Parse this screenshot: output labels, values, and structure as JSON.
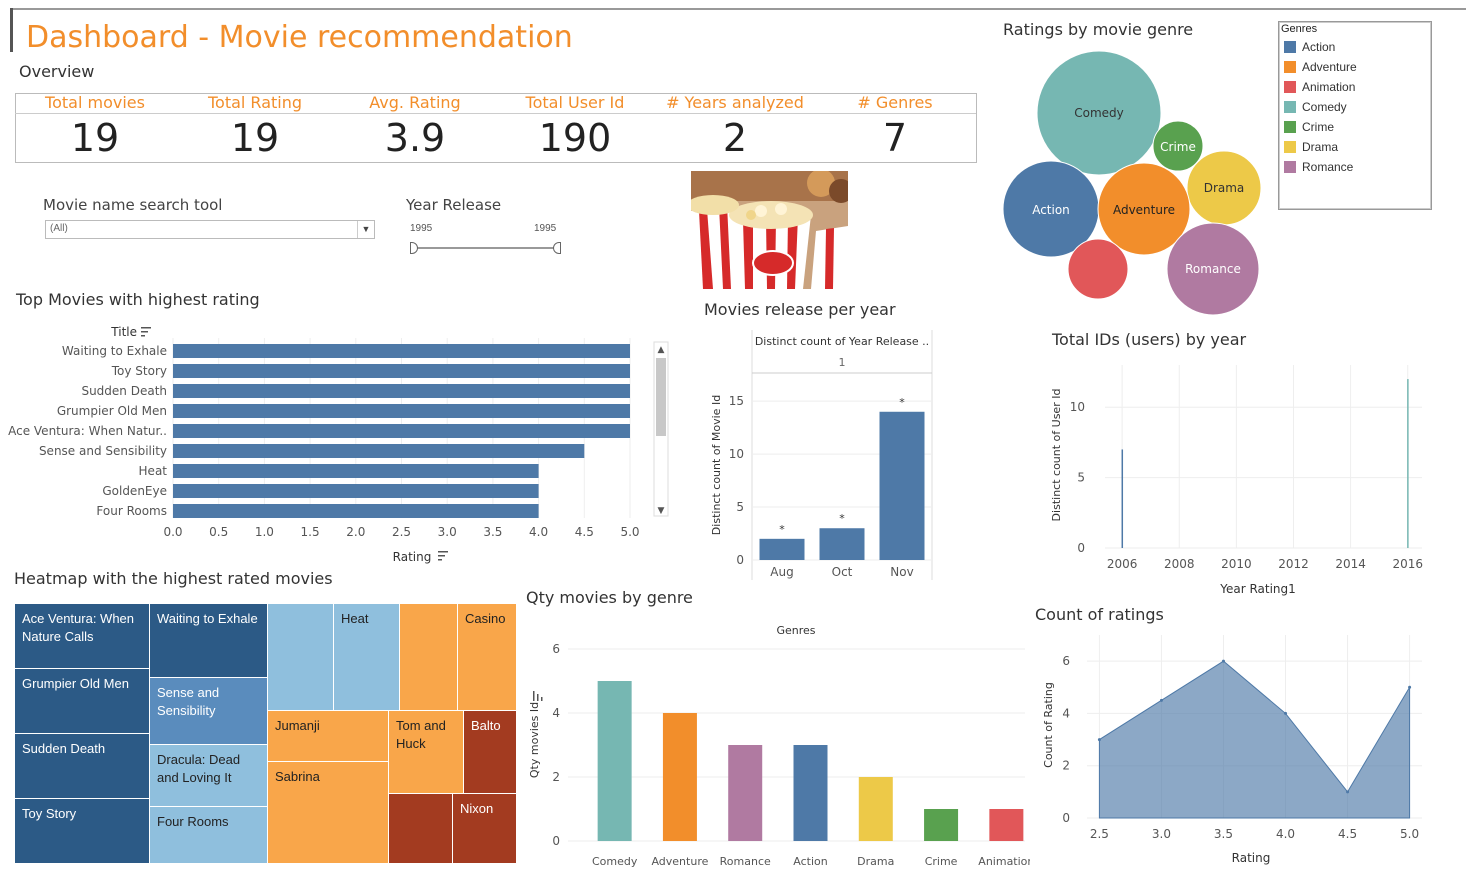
{
  "title": "Dashboard - Movie recommendation",
  "overview_label": "Overview",
  "kpis": [
    {
      "label": "Total movies",
      "value": "19"
    },
    {
      "label": "Total Rating",
      "value": "19"
    },
    {
      "label": "Avg. Rating",
      "value": "3.9"
    },
    {
      "label": "Total User Id",
      "value": "190"
    },
    {
      "label": "# Years analyzed",
      "value": "2"
    },
    {
      "label": "# Genres",
      "value": "7"
    }
  ],
  "filters": {
    "movie_search_label": "Movie name search tool",
    "movie_search_value": "(All)",
    "year_label": "Year Release",
    "year_min": "1995",
    "year_max": "1995"
  },
  "colors": {
    "accent": "#f28e2b",
    "action": "#4e79a7",
    "adventure": "#f28e2b",
    "animation": "#e15759",
    "comedy": "#76b7b2",
    "crime": "#59a14f",
    "drama": "#edc948",
    "romance": "#b07aa1"
  },
  "bubble_chart": {
    "title": "Ratings by movie genre",
    "legend_title": "Genres",
    "legend": [
      "Action",
      "Adventure",
      "Animation",
      "Comedy",
      "Crime",
      "Drama",
      "Romance"
    ],
    "bubbles": [
      {
        "name": "Comedy",
        "label": "Comedy",
        "color": "#76b7b2"
      },
      {
        "name": "Crime",
        "label": "Crime",
        "color": "#59a14f"
      },
      {
        "name": "Drama",
        "label": "Drama",
        "color": "#edc948"
      },
      {
        "name": "Action",
        "label": "Action",
        "color": "#4e79a7"
      },
      {
        "name": "Adventure",
        "label": "Adventure",
        "color": "#f28e2b"
      },
      {
        "name": "Animation",
        "label": "",
        "color": "#e15759"
      },
      {
        "name": "Romance",
        "label": "Romance",
        "color": "#b07aa1"
      }
    ]
  },
  "chart_data": [
    {
      "type": "bar",
      "orientation": "horizontal",
      "title": "Top Movies with highest rating",
      "category_header": "Title",
      "xlabel": "Rating",
      "categories": [
        "Waiting to Exhale",
        "Toy Story",
        "Sudden Death",
        "Grumpier Old Men",
        "Ace Ventura: When Natur..",
        "Sense and Sensibility",
        "Heat",
        "GoldenEye",
        "Four Rooms"
      ],
      "values": [
        5.0,
        5.0,
        5.0,
        5.0,
        5.0,
        4.5,
        4.0,
        4.0,
        4.0
      ],
      "xticks": [
        "0.0",
        "0.5",
        "1.0",
        "1.5",
        "2.0",
        "2.5",
        "3.0",
        "3.5",
        "4.0",
        "4.5",
        "5.0"
      ],
      "xlim": [
        0,
        5
      ]
    },
    {
      "type": "bar",
      "title": "Movies release per year",
      "header": "Distinct count of Year Release ..",
      "header_value": "1",
      "ylabel": "Distinct count of Movie Id",
      "categories": [
        "Aug",
        "Oct",
        "Nov"
      ],
      "values": [
        2,
        3,
        14
      ],
      "yticks": [
        "0",
        "5",
        "10",
        "15"
      ],
      "ylim": [
        0,
        17
      ],
      "marker": "*"
    },
    {
      "type": "bar",
      "title": "Total IDs (users) by year",
      "xlabel": "Year Rating1",
      "ylabel": "Distinct count of User Id",
      "x": [
        2006,
        2016
      ],
      "values": [
        7,
        12
      ],
      "xticks": [
        "2006",
        "2008",
        "2010",
        "2012",
        "2014",
        "2016"
      ],
      "yticks": [
        "0",
        "5",
        "10"
      ],
      "xlim": [
        2005.4,
        2016.5
      ],
      "ylim": [
        0,
        13
      ]
    },
    {
      "type": "bar",
      "title": "Qty movies by genre",
      "header": "Genres",
      "ylabel": "Qty movies Id",
      "categories": [
        "Comedy",
        "Adventure",
        "Romance",
        "Action",
        "Drama",
        "Crime",
        "Animation"
      ],
      "values": [
        5,
        4,
        3,
        3,
        2,
        1,
        1
      ],
      "colors": [
        "#76b7b2",
        "#f28e2b",
        "#b07aa1",
        "#4e79a7",
        "#edc948",
        "#59a14f",
        "#e15759"
      ],
      "yticks": [
        "0",
        "2",
        "4",
        "6"
      ],
      "ylim": [
        0,
        6
      ]
    },
    {
      "type": "area",
      "title": "Count of ratings",
      "xlabel": "Rating",
      "ylabel": "Count of Rating",
      "x": [
        2.5,
        3.0,
        3.5,
        4.0,
        4.5,
        5.0
      ],
      "values": [
        3,
        4.5,
        6,
        4,
        1,
        5
      ],
      "xticks": [
        "2.5",
        "3.0",
        "3.5",
        "4.0",
        "4.5",
        "5.0"
      ],
      "yticks": [
        "0",
        "2",
        "4",
        "6"
      ],
      "xlim": [
        2.4,
        5.1
      ],
      "ylim": [
        0,
        7
      ]
    },
    {
      "type": "heatmap",
      "title": "Heatmap with the highest rated movies",
      "cells": [
        {
          "label": "Ace Ventura: When Nature Calls",
          "rating": 5
        },
        {
          "label": "Grumpier Old Men",
          "rating": 5
        },
        {
          "label": "Sudden Death",
          "rating": 5
        },
        {
          "label": "Toy Story",
          "rating": 5
        },
        {
          "label": "Waiting to Exhale",
          "rating": 5
        },
        {
          "label": "Sense and Sensibility",
          "rating": 4.5
        },
        {
          "label": "Dracula: Dead and Loving It",
          "rating": 4
        },
        {
          "label": "Four Rooms",
          "rating": 4
        },
        {
          "label": "",
          "rating": 4
        },
        {
          "label": "Heat",
          "rating": 4
        },
        {
          "label": "",
          "rating": 3.5
        },
        {
          "label": "Casino",
          "rating": 3.5
        },
        {
          "label": "Jumanji",
          "rating": 3.5
        },
        {
          "label": "Sabrina",
          "rating": 3.5
        },
        {
          "label": "Tom and Huck",
          "rating": 3.5
        },
        {
          "label": "Balto",
          "rating": 2.5
        },
        {
          "label": "",
          "rating": 2.5
        },
        {
          "label": "Nixon",
          "rating": 2.5
        }
      ]
    }
  ]
}
